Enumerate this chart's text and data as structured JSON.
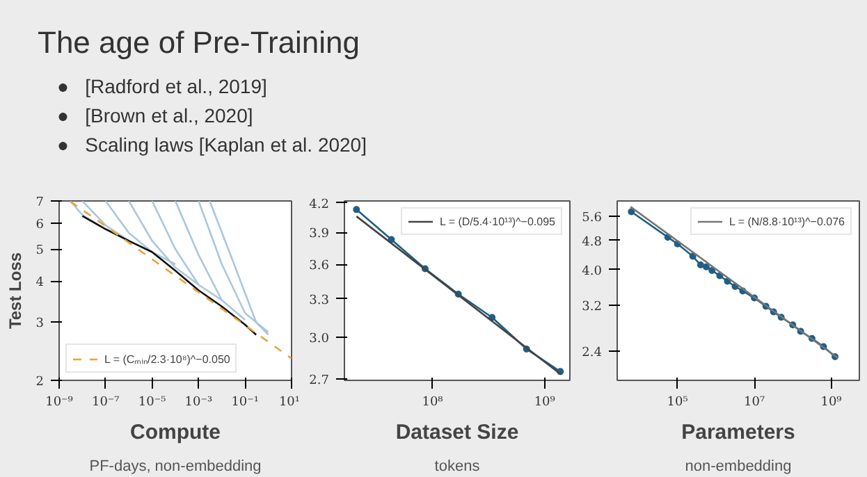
{
  "chart_data": [
    {
      "type": "line",
      "title": "The age of Pre-Training",
      "annotations": [
        "●   [Radford et al., 2019]",
        "●   [Brown et al., 2020]",
        "●   Scaling laws [Kaplan et al. 2020]"
      ],
      "xlabel": "Compute",
      "subtitle": "PF-days, non-embedding",
      "ylabel": "Test Loss",
      "log": "xy",
      "legend": "bottom left",
      "xlim": [
        1e-09,
        10
      ],
      "ylim": [
        2,
        7
      ],
      "xticks": [
        {
          "value": 1e-09,
          "label": "10⁻⁹"
        },
        {
          "value": 1e-07,
          "label": "10⁻⁷"
        },
        {
          "value": 1e-05,
          "label": "10⁻⁵"
        },
        {
          "value": 0.001,
          "label": "10⁻³"
        },
        {
          "value": 0.1,
          "label": "10⁻¹"
        },
        {
          "value": 10,
          "label": "10¹"
        }
      ],
      "yticks": [
        2,
        3,
        4,
        5,
        6,
        7
      ],
      "series": [
        {
          "color": "#a9c8dc",
          "x": [
            3e-09,
            1e-08,
            1e-07
          ],
          "values": [
            7.0,
            6.35,
            5.75
          ]
        },
        {
          "color": "#a9c8dc",
          "x": [
            1e-08,
            1e-07,
            1e-06
          ],
          "values": [
            7.0,
            5.9,
            5.3
          ]
        },
        {
          "color": "#a9c8dc",
          "x": [
            1e-07,
            1e-06,
            1e-05,
            0.0001
          ],
          "values": [
            7.0,
            5.6,
            4.9,
            4.5
          ]
        },
        {
          "color": "#a9c8dc",
          "x": [
            1e-06,
            1e-05,
            0.0001,
            0.001
          ],
          "values": [
            7.0,
            5.3,
            4.4,
            3.9
          ]
        },
        {
          "color": "#a9c8dc",
          "x": [
            1e-05,
            0.0001,
            0.001,
            0.01
          ],
          "values": [
            7.0,
            5.0,
            3.9,
            3.5
          ]
        },
        {
          "color": "#a9c8dc",
          "x": [
            0.0001,
            0.001,
            0.01,
            0.1
          ],
          "values": [
            7.0,
            4.8,
            3.5,
            3.05
          ]
        },
        {
          "color": "#a9c8dc",
          "x": [
            0.001,
            0.01,
            0.1,
            1
          ],
          "values": [
            7.0,
            4.5,
            3.2,
            2.8
          ]
        },
        {
          "color": "#a9c8dc",
          "x": [
            0.003,
            0.03,
            0.3,
            1
          ],
          "values": [
            7.0,
            4.6,
            3.0,
            2.75
          ]
        },
        {
          "color": "#111111",
          "x": [
            1e-08,
            1e-07,
            1e-06,
            1e-05,
            0.0001,
            0.001,
            0.01,
            0.1,
            0.3
          ],
          "values": [
            6.3,
            5.75,
            5.3,
            4.9,
            4.3,
            3.75,
            3.35,
            2.95,
            2.75
          ]
        },
        {
          "name": "L = (Cₘᵢₙ/2.3·10⁸)^−0.050",
          "color": "#e8a33a",
          "line_style": "dashed",
          "x": [
            3e-09,
            1e-07,
            1e-05,
            0.001,
            0.1,
            10
          ],
          "values": [
            6.98,
            5.87,
            4.66,
            3.7,
            2.94,
            2.33
          ]
        }
      ]
    },
    {
      "type": "line",
      "xlabel": "Dataset Size",
      "subtitle": "tokens",
      "log": "xy",
      "legend": "top right",
      "xlim": [
        16400000.0,
        1680000000.0
      ],
      "ylim": [
        2.69,
        4.22
      ],
      "xticks": [
        {
          "value": 100000000.0,
          "label": "10⁸"
        },
        {
          "value": 1000000000.0,
          "label": "10⁹"
        }
      ],
      "yticks": [
        2.7,
        {
          "value": 3.0,
          "label": "3.0"
        },
        3.3,
        3.6,
        3.9,
        4.2
      ],
      "series": [
        {
          "color": "#1f5f86",
          "marker": "circle",
          "x": [
            21000000.0,
            43000000.0,
            86000000.0,
            170000000.0,
            340000000.0,
            690000000.0,
            1380000000.0
          ],
          "values": [
            4.13,
            3.83,
            3.56,
            3.34,
            3.15,
            2.91,
            2.75
          ]
        },
        {
          "name": "L = (D/5.4·10¹³)^−0.095",
          "color": "#444444",
          "x": [
            21000000.0,
            1400000000.0
          ],
          "values": [
            4.06,
            2.73
          ]
        }
      ]
    },
    {
      "type": "line",
      "xlabel": "Parameters",
      "subtitle": "non-embedding",
      "log": "xy",
      "legend": "top right",
      "xlim": [
        2700,
        5400000000.0
      ],
      "ylim": [
        2.0,
        6.15
      ],
      "xticks": [
        {
          "value": 100000.0,
          "label": "10⁵"
        },
        {
          "value": 10000000.0,
          "label": "10⁷"
        },
        {
          "value": 1000000000.0,
          "label": "10⁹"
        }
      ],
      "yticks": [
        2.4,
        3.2,
        {
          "value": 4.0,
          "label": "4.0"
        },
        4.8,
        5.6
      ],
      "series": [
        {
          "color": "#1f5f86",
          "marker": "circle",
          "x": [
            6300,
            56000,
            100000,
            250000,
            400000,
            560000,
            790000,
            1260000,
            2000000,
            3160000,
            5000000,
            10000000.0,
            20000000.0,
            31600000.0,
            50000000.0,
            100000000.0,
            160000000.0,
            316000000.0,
            630000000.0,
            1260000000.0
          ],
          "values": [
            5.75,
            4.9,
            4.7,
            4.35,
            4.12,
            4.07,
            3.98,
            3.85,
            3.72,
            3.6,
            3.5,
            3.35,
            3.18,
            3.07,
            2.97,
            2.83,
            2.72,
            2.6,
            2.47,
            2.32
          ]
        },
        {
          "name": "L = (N/8.8·10¹³)^−0.076",
          "color": "#777777",
          "x": [
            6000,
            1500000000.0
          ],
          "values": [
            5.93,
            2.3
          ]
        }
      ]
    }
  ]
}
